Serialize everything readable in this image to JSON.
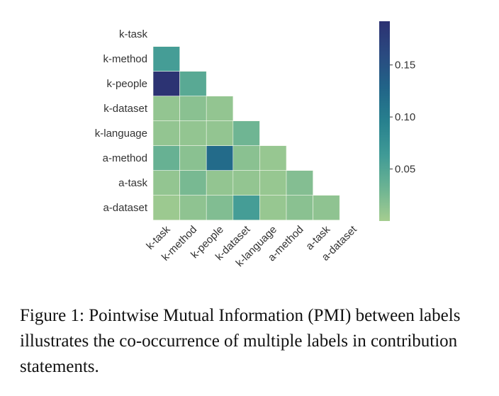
{
  "chart_data": {
    "type": "heatmap",
    "title": "",
    "xlabel": "",
    "ylabel": "",
    "row_labels": [
      "k-task",
      "k-method",
      "k-people",
      "k-dataset",
      "k-language",
      "a-method",
      "a-task",
      "a-dataset"
    ],
    "col_labels": [
      "k-task",
      "k-method",
      "k-people",
      "k-dataset",
      "k-language",
      "a-method",
      "a-task",
      "a-dataset"
    ],
    "mask": "upper-triangle-including-diagonal",
    "values": [
      [],
      [
        0.06
      ],
      [
        0.19,
        0.045
      ],
      [
        0.01,
        0.015,
        0.01
      ],
      [
        0.01,
        0.01,
        0.01,
        0.03
      ],
      [
        0.035,
        0.015,
        0.12,
        0.015,
        0.008
      ],
      [
        0.01,
        0.025,
        0.01,
        0.01,
        0.008,
        0.018
      ],
      [
        0.005,
        0.012,
        0.02,
        0.06,
        0.008,
        0.015,
        0.012
      ]
    ],
    "colorbar": {
      "range": [
        0.0,
        0.192
      ],
      "ticks": [
        0.05,
        0.1,
        0.15
      ],
      "tick_labels": [
        "0.05",
        "0.10",
        "0.15"
      ],
      "colors": [
        "#a5cd90",
        "#6bb393",
        "#3f9a96",
        "#27808e",
        "#216488",
        "#2a4a80",
        "#2c3172"
      ]
    }
  },
  "caption": "Figure 1: Pointwise Mutual Information (PMI) between labels illustrates the co-occurrence of multiple labels in contribution statements."
}
